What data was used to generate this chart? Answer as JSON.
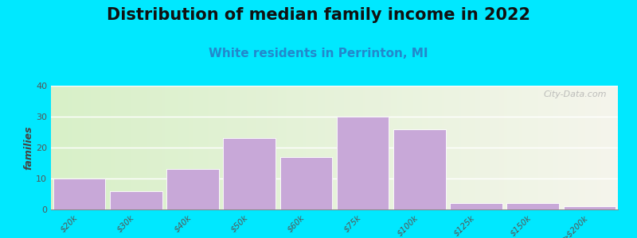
{
  "title": "Distribution of median family income in 2022",
  "subtitle": "White residents in Perrinton, MI",
  "categories": [
    "$20k",
    "$30k",
    "$40k",
    "$50k",
    "$60k",
    "$75k",
    "$100k",
    "$125k",
    "$150k",
    ">$200k"
  ],
  "values": [
    10,
    6,
    13,
    23,
    17,
    30,
    26,
    2,
    2,
    1
  ],
  "bar_color": "#c8a8d8",
  "bar_edge_color": "#ffffff",
  "ylabel": "families",
  "ylim": [
    0,
    40
  ],
  "yticks": [
    0,
    10,
    20,
    30,
    40
  ],
  "background_outer": "#00e8ff",
  "background_inner_left": "#d8f0c8",
  "background_inner_right": "#f5f5ec",
  "title_fontsize": 15,
  "subtitle_fontsize": 11,
  "subtitle_color": "#2288cc",
  "watermark": "City-Data.com"
}
